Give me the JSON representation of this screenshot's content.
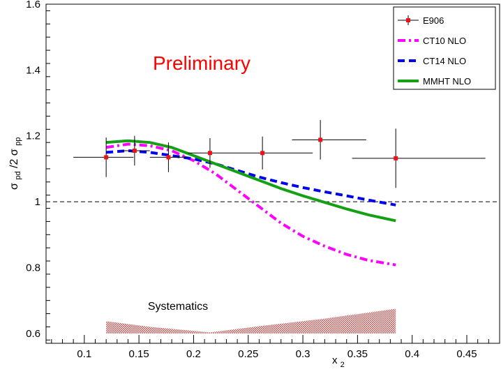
{
  "chart_data": {
    "type": "scatter",
    "title": "",
    "annotation": "Preliminary",
    "band_label": "Systematics",
    "xlabel": "x",
    "xlabel_sub": "2",
    "ylabel": {
      "sym1": "σ",
      "sub1": "pd",
      "mid": "/2",
      "sym2": "σ",
      "sub2": "pp"
    },
    "xlim": [
      0.065,
      0.48
    ],
    "ylim": [
      0.57,
      1.6
    ],
    "x_ticks": [
      "0.1",
      "0.15",
      "0.2",
      "0.25",
      "0.3",
      "0.35",
      "0.4",
      "0.45"
    ],
    "y_ticks": [
      "0.6",
      "0.8",
      "1",
      "1.2",
      "1.4",
      "1.6"
    ],
    "x_tick_values": [
      0.1,
      0.15,
      0.2,
      0.25,
      0.3,
      0.35,
      0.4,
      0.45
    ],
    "y_tick_values": [
      0.6,
      0.8,
      1.0,
      1.2,
      1.4,
      1.6
    ],
    "reference_line": 1.0,
    "legend_position": "top-right",
    "series": [
      {
        "name": "E906",
        "kind": "points",
        "color": "#e8141c",
        "points": [
          {
            "x": 0.12,
            "y": 1.135,
            "xerr_lo": 0.03,
            "xerr_hi": 0.025,
            "yerr": 0.06
          },
          {
            "x": 0.146,
            "y": 1.155,
            "xerr_lo": 0.011,
            "xerr_hi": 0.014,
            "yerr": 0.045
          },
          {
            "x": 0.177,
            "y": 1.135,
            "xerr_lo": 0.017,
            "xerr_hi": 0.018,
            "yerr": 0.045
          },
          {
            "x": 0.215,
            "y": 1.148,
            "xerr_lo": 0.02,
            "xerr_hi": 0.03,
            "yerr": 0.045
          },
          {
            "x": 0.263,
            "y": 1.148,
            "xerr_lo": 0.018,
            "xerr_hi": 0.046,
            "yerr": 0.05
          },
          {
            "x": 0.316,
            "y": 1.188,
            "xerr_lo": 0.026,
            "xerr_hi": 0.042,
            "yerr": 0.06
          },
          {
            "x": 0.385,
            "y": 1.132,
            "xerr_lo": 0.04,
            "xerr_hi": 0.082,
            "yerr": 0.09
          }
        ]
      },
      {
        "name": "CT10 NLO",
        "kind": "line",
        "color": "#ff00ff",
        "dash": "dashdot",
        "points": [
          [
            0.12,
            1.165
          ],
          [
            0.14,
            1.175
          ],
          [
            0.16,
            1.17
          ],
          [
            0.18,
            1.155
          ],
          [
            0.2,
            1.125
          ],
          [
            0.22,
            1.085
          ],
          [
            0.24,
            1.035
          ],
          [
            0.26,
            0.985
          ],
          [
            0.28,
            0.935
          ],
          [
            0.3,
            0.895
          ],
          [
            0.32,
            0.865
          ],
          [
            0.34,
            0.84
          ],
          [
            0.36,
            0.822
          ],
          [
            0.385,
            0.808
          ]
        ]
      },
      {
        "name": "CT14 NLO",
        "kind": "line",
        "color": "#0000ee",
        "dash": "dash",
        "points": [
          [
            0.12,
            1.15
          ],
          [
            0.14,
            1.155
          ],
          [
            0.16,
            1.15
          ],
          [
            0.18,
            1.14
          ],
          [
            0.2,
            1.13
          ],
          [
            0.22,
            1.115
          ],
          [
            0.24,
            1.095
          ],
          [
            0.26,
            1.075
          ],
          [
            0.28,
            1.058
          ],
          [
            0.3,
            1.043
          ],
          [
            0.32,
            1.03
          ],
          [
            0.34,
            1.018
          ],
          [
            0.36,
            1.005
          ],
          [
            0.385,
            0.99
          ]
        ]
      },
      {
        "name": "MMHT NLO",
        "kind": "line",
        "color": "#13a013",
        "dash": "solid",
        "points": [
          [
            0.12,
            1.18
          ],
          [
            0.14,
            1.185
          ],
          [
            0.16,
            1.18
          ],
          [
            0.18,
            1.165
          ],
          [
            0.2,
            1.14
          ],
          [
            0.22,
            1.115
          ],
          [
            0.24,
            1.09
          ],
          [
            0.26,
            1.065
          ],
          [
            0.28,
            1.04
          ],
          [
            0.3,
            1.018
          ],
          [
            0.32,
            0.998
          ],
          [
            0.34,
            0.978
          ],
          [
            0.36,
            0.96
          ],
          [
            0.385,
            0.942
          ]
        ]
      }
    ],
    "systematics_band": {
      "color": "#c0504d",
      "base": 0.6,
      "points": [
        [
          0.12,
          0.637
        ],
        [
          0.16,
          0.62
        ],
        [
          0.215,
          0.603
        ],
        [
          0.26,
          0.622
        ],
        [
          0.32,
          0.645
        ],
        [
          0.385,
          0.675
        ]
      ]
    }
  }
}
